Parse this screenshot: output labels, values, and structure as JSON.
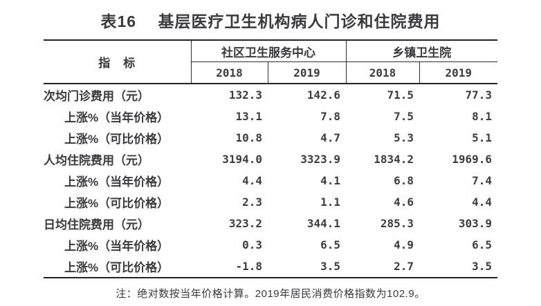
{
  "title": "表16　 基层医疗卫生机构病人门诊和住院费用",
  "table": {
    "indicator_header": "指　标",
    "groups": [
      {
        "label": "社区卫生服务中心",
        "years": [
          "2018",
          "2019"
        ]
      },
      {
        "label": "乡镇卫生院",
        "years": [
          "2018",
          "2019"
        ]
      }
    ],
    "rows": [
      {
        "label": "次均门诊费用（元）",
        "indent": false,
        "values": [
          "132.3",
          "142.6",
          "71.5",
          "77.3"
        ]
      },
      {
        "label": "上涨%（当年价格）",
        "indent": true,
        "values": [
          "13.1",
          "7.8",
          "7.5",
          "8.1"
        ]
      },
      {
        "label": "上涨%（可比价格）",
        "indent": true,
        "values": [
          "10.8",
          "4.7",
          "5.3",
          "5.1"
        ]
      },
      {
        "label": "人均住院费用（元）",
        "indent": false,
        "values": [
          "3194.0",
          "3323.9",
          "1834.2",
          "1969.6"
        ]
      },
      {
        "label": "上涨%（当年价格）",
        "indent": true,
        "values": [
          "4.4",
          "4.1",
          "6.8",
          "7.4"
        ]
      },
      {
        "label": "上涨%（可比价格）",
        "indent": true,
        "values": [
          "2.3",
          "1.1",
          "4.6",
          "4.4"
        ]
      },
      {
        "label": "日均住院费用（元）",
        "indent": false,
        "values": [
          "323.2",
          "344.1",
          "285.3",
          "303.9"
        ]
      },
      {
        "label": "上涨%（当年价格）",
        "indent": true,
        "values": [
          "0.3",
          "6.5",
          "4.9",
          "6.5"
        ]
      },
      {
        "label": "上涨%（可比价格）",
        "indent": true,
        "values": [
          "-1.8",
          "3.5",
          "2.7",
          "3.5"
        ]
      }
    ]
  },
  "note": "注：绝对数按当年价格计算。2019年居民消费价格指数为102.9。",
  "colors": {
    "background": "#ffffff",
    "text": "#3a3a3e",
    "rule_heavy": "#232327",
    "rule_light": "#2c2c30"
  }
}
